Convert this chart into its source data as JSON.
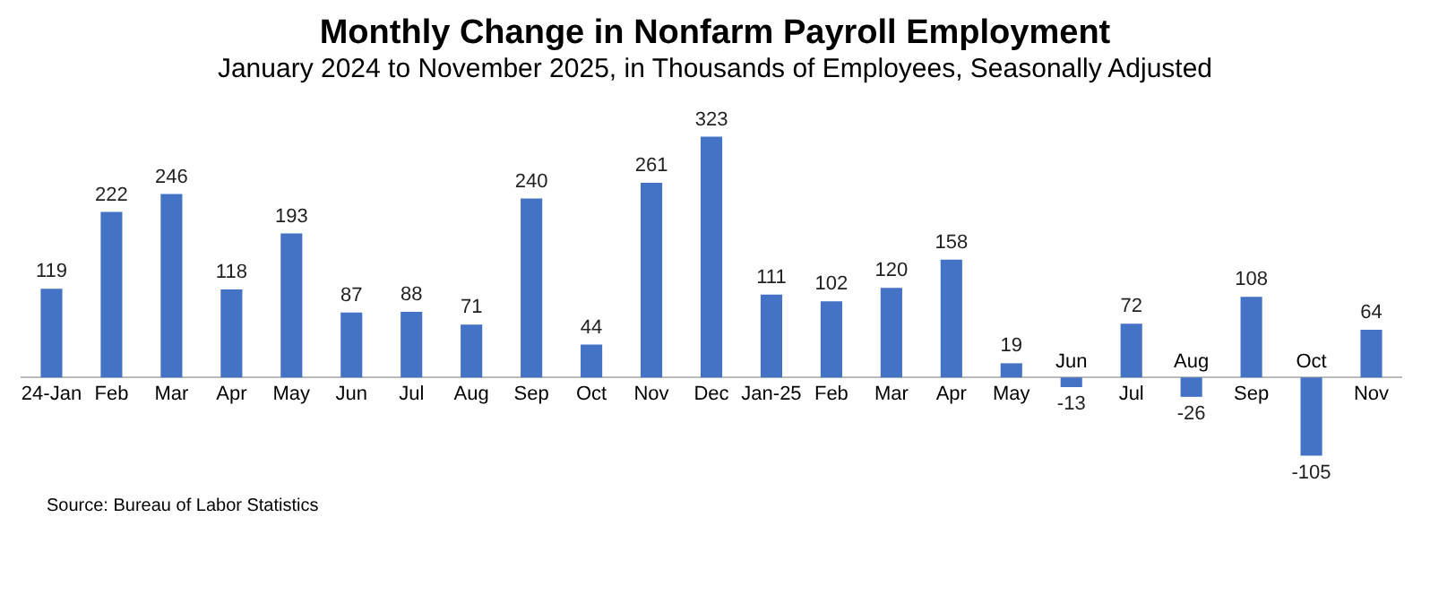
{
  "chart_data": {
    "type": "bar",
    "title": "Monthly Change in Nonfarm Payroll Employment",
    "subtitle": "January 2024 to November 2025, in Thousands of Employees, Seasonally Adjusted",
    "categories": [
      "24-Jan",
      "Feb",
      "Mar",
      "Apr",
      "May",
      "Jun",
      "Jul",
      "Aug",
      "Sep",
      "Oct",
      "Nov",
      "Dec",
      "Jan-25",
      "Feb",
      "Mar",
      "Apr",
      "May",
      "Jun",
      "Jul",
      "Aug",
      "Sep",
      "Oct",
      "Nov"
    ],
    "values": [
      119,
      222,
      246,
      118,
      193,
      87,
      88,
      71,
      240,
      44,
      261,
      323,
      111,
      102,
      120,
      158,
      19,
      -13,
      72,
      -26,
      108,
      -105,
      64
    ],
    "color": "#4472c4",
    "data_labels": true,
    "grid": false,
    "legend": false,
    "annotations": [
      "Source: Bureau of Labor Statistics"
    ]
  }
}
